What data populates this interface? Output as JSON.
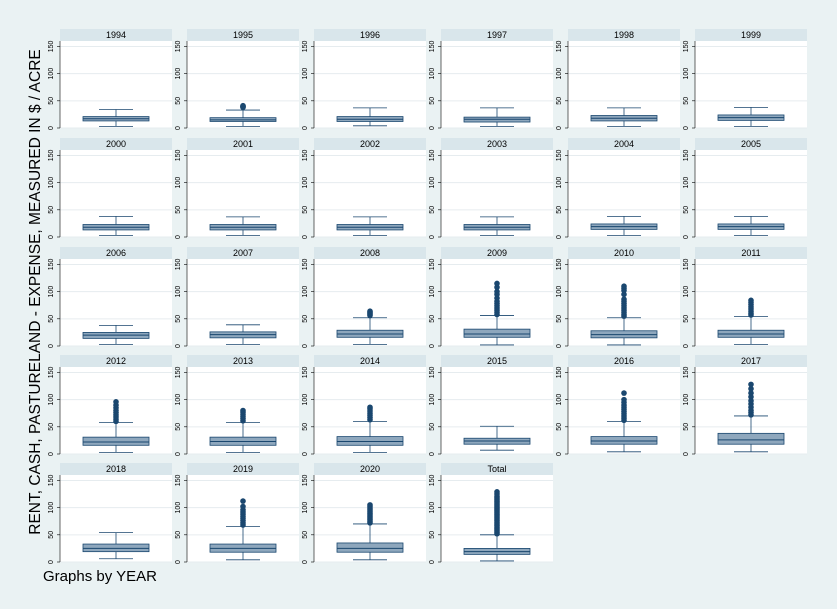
{
  "chart_data": {
    "type": "box",
    "ylabel": "RENT, CASH, PASTURELAND - EXPENSE, MEASURED IN $ / ACRE",
    "note": "Graphs by YEAR",
    "ylim": [
      0,
      160
    ],
    "yticks": [
      0,
      50,
      100,
      150
    ],
    "grid": true,
    "colors": {
      "background": "#eaf2f3",
      "panel": "#ffffff",
      "header": "#d9e6eb",
      "box": "#8ea7bd",
      "line": "#1a476f",
      "outlier": "#1a476f"
    },
    "panels": [
      {
        "label": "1994",
        "min": 3,
        "q1": 13,
        "median": 17,
        "q3": 21,
        "max": 34,
        "outliers": []
      },
      {
        "label": "1995",
        "min": 3,
        "q1": 12,
        "median": 15,
        "q3": 19,
        "max": 33,
        "outliers": [
          38,
          39,
          40,
          41
        ]
      },
      {
        "label": "1996",
        "min": 4,
        "q1": 12,
        "median": 16,
        "q3": 21,
        "max": 37,
        "outliers": []
      },
      {
        "label": "1997",
        "min": 3,
        "q1": 11,
        "median": 16,
        "q3": 20,
        "max": 37,
        "outliers": []
      },
      {
        "label": "1998",
        "min": 3,
        "q1": 13,
        "median": 18,
        "q3": 23,
        "max": 37,
        "outliers": []
      },
      {
        "label": "1999",
        "min": 3,
        "q1": 14,
        "median": 19,
        "q3": 24,
        "max": 38,
        "outliers": []
      },
      {
        "label": "2000",
        "min": 3,
        "q1": 13,
        "median": 18,
        "q3": 23,
        "max": 38,
        "outliers": []
      },
      {
        "label": "2001",
        "min": 3,
        "q1": 13,
        "median": 18,
        "q3": 23,
        "max": 37,
        "outliers": []
      },
      {
        "label": "2002",
        "min": 3,
        "q1": 13,
        "median": 18,
        "q3": 23,
        "max": 37,
        "outliers": []
      },
      {
        "label": "2003",
        "min": 3,
        "q1": 13,
        "median": 18,
        "q3": 23,
        "max": 37,
        "outliers": []
      },
      {
        "label": "2004",
        "min": 3,
        "q1": 14,
        "median": 19,
        "q3": 24,
        "max": 38,
        "outliers": []
      },
      {
        "label": "2005",
        "min": 3,
        "q1": 14,
        "median": 19,
        "q3": 24,
        "max": 38,
        "outliers": []
      },
      {
        "label": "2006",
        "min": 3,
        "q1": 14,
        "median": 20,
        "q3": 25,
        "max": 38,
        "outliers": []
      },
      {
        "label": "2007",
        "min": 3,
        "q1": 15,
        "median": 21,
        "q3": 26,
        "max": 39,
        "outliers": []
      },
      {
        "label": "2008",
        "min": 3,
        "q1": 16,
        "median": 22,
        "q3": 29,
        "max": 52,
        "outliers": [
          56,
          58,
          60,
          62,
          64
        ]
      },
      {
        "label": "2009",
        "min": 2,
        "q1": 16,
        "median": 22,
        "q3": 31,
        "max": 56,
        "outliers": [
          58,
          62,
          66,
          70,
          74,
          78,
          82,
          88,
          95,
          100,
          108,
          115
        ]
      },
      {
        "label": "2010",
        "min": 2,
        "q1": 15,
        "median": 21,
        "q3": 28,
        "max": 52,
        "outliers": [
          55,
          58,
          62,
          66,
          70,
          74,
          78,
          82,
          86,
          95,
          102,
          106,
          110
        ]
      },
      {
        "label": "2011",
        "min": 3,
        "q1": 16,
        "median": 22,
        "q3": 29,
        "max": 54,
        "outliers": [
          57,
          60,
          64,
          68,
          72,
          76,
          80,
          84
        ]
      },
      {
        "label": "2012",
        "min": 3,
        "q1": 16,
        "median": 22,
        "q3": 31,
        "max": 58,
        "outliers": [
          60,
          64,
          68,
          72,
          76,
          80,
          85,
          90,
          96
        ]
      },
      {
        "label": "2013",
        "min": 3,
        "q1": 16,
        "median": 23,
        "q3": 31,
        "max": 58,
        "outliers": [
          61,
          65,
          69,
          73,
          77,
          80
        ]
      },
      {
        "label": "2014",
        "min": 3,
        "q1": 16,
        "median": 23,
        "q3": 32,
        "max": 60,
        "outliers": [
          63,
          67,
          71,
          75,
          79,
          83,
          86
        ]
      },
      {
        "label": "2015",
        "min": 7,
        "q1": 18,
        "median": 24,
        "q3": 29,
        "max": 51,
        "outliers": []
      },
      {
        "label": "2016",
        "min": 4,
        "q1": 18,
        "median": 24,
        "q3": 32,
        "max": 60,
        "outliers": [
          62,
          66,
          70,
          74,
          78,
          82,
          86,
          90,
          95,
          100,
          112
        ]
      },
      {
        "label": "2017",
        "min": 4,
        "q1": 18,
        "median": 26,
        "q3": 38,
        "max": 70,
        "outliers": [
          72,
          76,
          80,
          86,
          92,
          98,
          105,
          112,
          120,
          128
        ]
      },
      {
        "label": "2018",
        "min": 6,
        "q1": 19,
        "median": 25,
        "q3": 33,
        "max": 54,
        "outliers": []
      },
      {
        "label": "2019",
        "min": 4,
        "q1": 18,
        "median": 25,
        "q3": 33,
        "max": 65,
        "outliers": [
          68,
          72,
          76,
          80,
          84,
          88,
          92,
          96,
          102,
          112
        ]
      },
      {
        "label": "2020",
        "min": 4,
        "q1": 18,
        "median": 25,
        "q3": 35,
        "max": 70,
        "outliers": [
          72,
          75,
          78,
          81,
          84,
          87,
          90,
          93,
          96,
          99,
          102,
          105
        ]
      },
      {
        "label": "Total",
        "min": 2,
        "q1": 14,
        "median": 19,
        "q3": 25,
        "max": 50,
        "outliers": [
          52,
          55,
          58,
          61,
          64,
          67,
          70,
          73,
          76,
          79,
          82,
          85,
          88,
          91,
          94,
          97,
          100,
          103,
          106,
          109,
          112,
          115,
          118,
          121,
          125,
          129
        ]
      }
    ]
  }
}
